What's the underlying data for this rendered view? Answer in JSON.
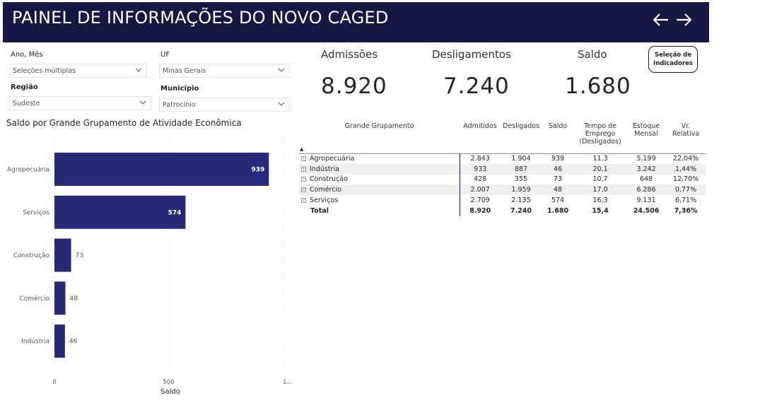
{
  "header": {
    "title": "PAINEL DE INFORMAÇÕES DO NOVO CAGED",
    "back_icon": "arrow-left-icon",
    "forward_icon": "arrow-right-icon"
  },
  "filters": {
    "ano_mes": {
      "label": "Ano, Mês",
      "value": "Seleções múltiplas"
    },
    "uf": {
      "label": "UF",
      "value": "Minas Gerais"
    },
    "regiao": {
      "label": "Região",
      "value": "Sudeste"
    },
    "municipio": {
      "label": "Município",
      "value": "Patrocínio"
    }
  },
  "kpis": {
    "admissoes": {
      "label": "Admissões",
      "value": "8.920"
    },
    "desligamentos": {
      "label": "Desligamentos",
      "value": "7.240"
    },
    "saldo": {
      "label": "Saldo",
      "value": "1.680"
    }
  },
  "selection_button": {
    "line1": "Seleção de",
    "line2": "Indicadores"
  },
  "colors": {
    "header_bg": "#161742",
    "bar": "#262a78"
  },
  "chart_data": {
    "type": "bar",
    "orientation": "horizontal",
    "title": "Saldo por Grande Grupamento de Atividade Econômica",
    "categories": [
      "Agropecuária",
      "Serviços",
      "Construção",
      "Comércio",
      "Indústria"
    ],
    "values": [
      939,
      574,
      73,
      48,
      46
    ],
    "value_labels": [
      "939",
      "574",
      "73",
      "48",
      "46"
    ],
    "xlabel": "Saldo",
    "ylabel": "",
    "xlim": [
      0,
      1000
    ],
    "xticks": [
      "0",
      "500",
      "1..."
    ],
    "grid": true
  },
  "table": {
    "headers": [
      "Grande Grupamento",
      "Admitidos",
      "Desligados",
      "Saldo",
      "Tempo de Emprego (Desligados)",
      "Estoque Mensal",
      "Vr. Relativa"
    ],
    "rows": [
      [
        "Agropecuária",
        "2.843",
        "1.904",
        "939",
        "11,3",
        "5.199",
        "22,04%"
      ],
      [
        "Indústria",
        "933",
        "887",
        "46",
        "20,1",
        "3.242",
        "1,44%"
      ],
      [
        "Construção",
        "428",
        "355",
        "73",
        "10,7",
        "648",
        "12,70%"
      ],
      [
        "Comércio",
        "2.007",
        "1.959",
        "48",
        "17,0",
        "6.286",
        "0,77%"
      ],
      [
        "Serviços",
        "2.709",
        "2.135",
        "574",
        "16,3",
        "9.131",
        "6,71%"
      ]
    ],
    "total": [
      "Total",
      "8.920",
      "7.240",
      "1.680",
      "15,4",
      "24.506",
      "7,36%"
    ]
  }
}
